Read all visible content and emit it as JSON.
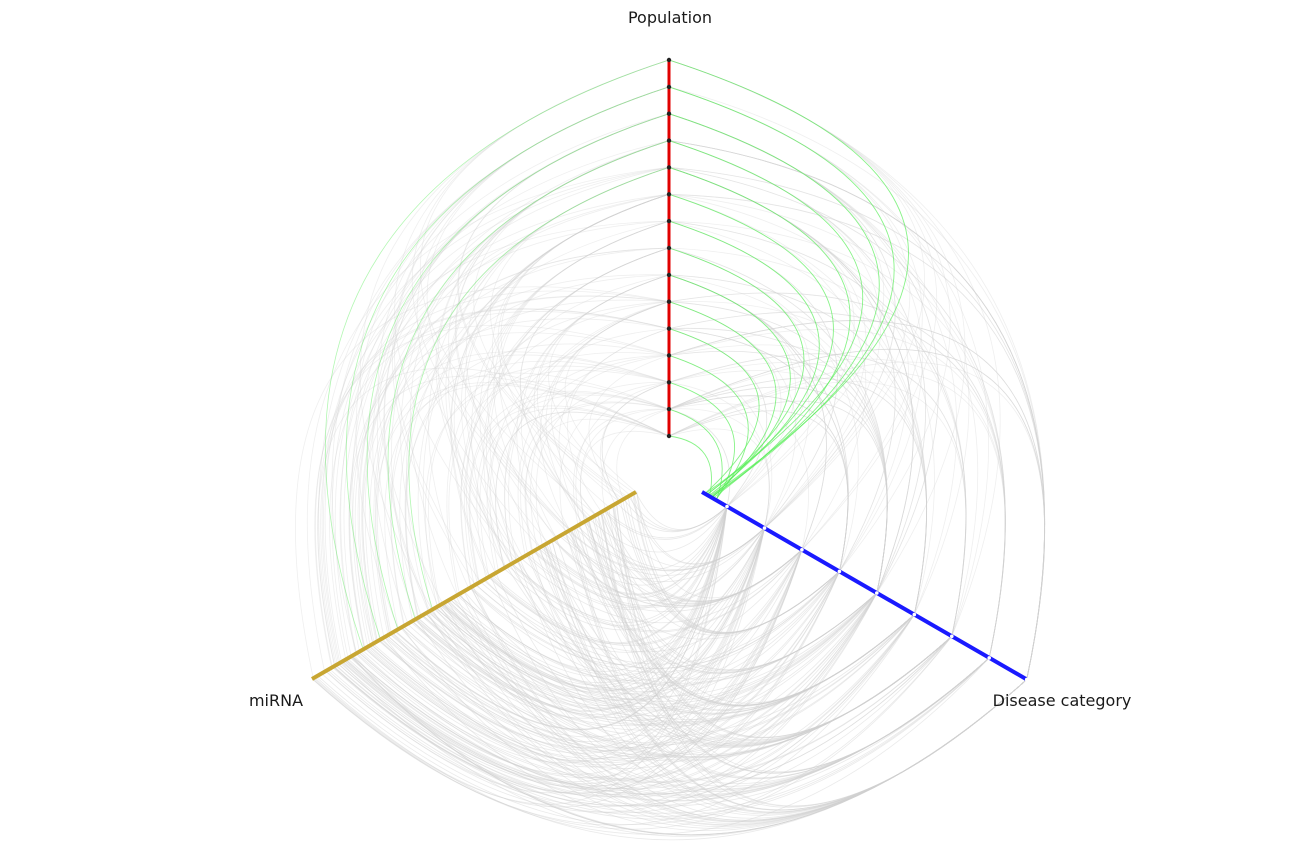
{
  "diagram": {
    "type": "hive_plot",
    "axes": [
      {
        "name": "Population",
        "color": "#e00000",
        "node_count": 15
      },
      {
        "name": "miRNA",
        "color": "#c8a632",
        "node_count": 0
      },
      {
        "name": "Disease category",
        "color": "#1a1aff",
        "node_count": 9
      }
    ],
    "edge_colors": {
      "default": "#d0d0d0",
      "highlight": "#55ee55"
    }
  }
}
